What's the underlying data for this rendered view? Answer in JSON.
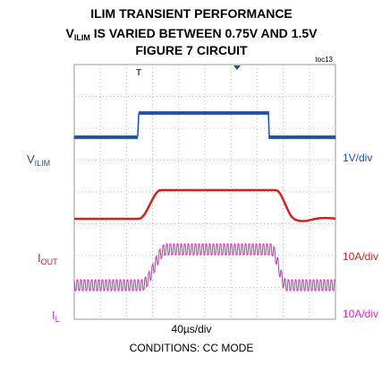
{
  "header": {
    "line1": "ILIM TRANSIENT PERFORMANCE",
    "line2": {
      "main": "V",
      "sub": "ILIM",
      "rest": " IS VARIED BETWEEN 0.75V AND 1.5V"
    },
    "line3": "FIGURE 7 CIRCUIT",
    "tag": "toc13"
  },
  "traces": [
    {
      "label": {
        "main": "V",
        "sub": "ILIM"
      },
      "scale": "1V/div",
      "color": "#1f4fa0"
    },
    {
      "label": {
        "main": "I",
        "sub": "OUT"
      },
      "scale": "10A/div",
      "color": "#d42020"
    },
    {
      "label": {
        "main": "I",
        "sub": "L"
      },
      "scale": "10A/div",
      "color": "#e020c8"
    }
  ],
  "timebase": "40µs/div",
  "conditions": "CONDITIONS: CC MODE"
}
